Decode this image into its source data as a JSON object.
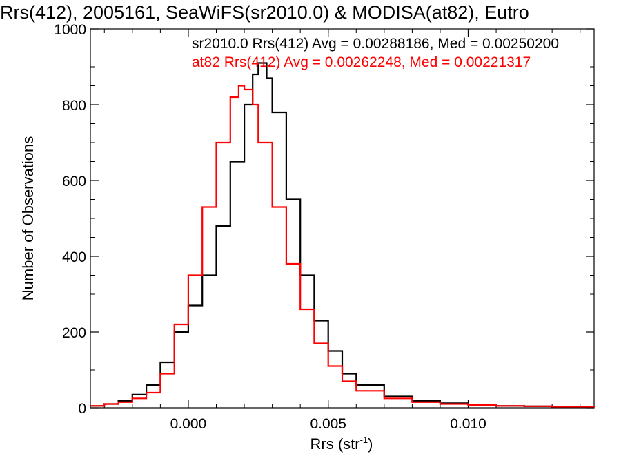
{
  "chart_data": {
    "type": "line",
    "step": true,
    "title": "Rrs(412), 2005161, SeaWiFS(sr2010.0) & MODISA(at82), Eutro",
    "xlabel": "Rrs (str",
    "xlabel_sup": "-1",
    "xlabel_close": ")",
    "ylabel": "Number of Observations",
    "xlim": [
      -0.0035,
      0.0145
    ],
    "ylim": [
      0,
      1000
    ],
    "xticks": [
      0.0,
      0.005,
      0.01
    ],
    "xtick_labels": [
      "0.000",
      "0.005",
      "0.010"
    ],
    "yticks": [
      0,
      200,
      400,
      600,
      800,
      1000
    ],
    "ytick_labels": [
      "0",
      "200",
      "400",
      "600",
      "800",
      "1000"
    ],
    "grid": false,
    "legend_position": "top-right",
    "series": [
      {
        "name": "sr2010.0",
        "legend": "sr2010.0 Rrs(412) Avg = 0.00288186, Med = 0.00250200",
        "color": "#000000",
        "x": [
          -0.0035,
          -0.003,
          -0.0025,
          -0.002,
          -0.0015,
          -0.001,
          -0.0005,
          0.0,
          0.0005,
          0.001,
          0.0015,
          0.002,
          0.0023,
          0.0025,
          0.0028,
          0.003,
          0.0035,
          0.004,
          0.0045,
          0.005,
          0.0055,
          0.006,
          0.007,
          0.008,
          0.009,
          0.01,
          0.011,
          0.012,
          0.013,
          0.0145
        ],
        "y": [
          5,
          10,
          18,
          35,
          60,
          120,
          200,
          270,
          350,
          480,
          650,
          800,
          880,
          910,
          870,
          780,
          550,
          350,
          230,
          150,
          90,
          60,
          30,
          18,
          12,
          8,
          5,
          4,
          3,
          2
        ]
      },
      {
        "name": "at82",
        "legend": "at82 Rrs(412) Avg = 0.00262248, Med = 0.00221317",
        "color": "#ff0000",
        "x": [
          -0.0035,
          -0.003,
          -0.0025,
          -0.002,
          -0.0015,
          -0.001,
          -0.0005,
          0.0,
          0.0005,
          0.001,
          0.0015,
          0.0018,
          0.002,
          0.0023,
          0.0025,
          0.003,
          0.0035,
          0.004,
          0.0045,
          0.005,
          0.0055,
          0.006,
          0.007,
          0.008,
          0.009,
          0.01,
          0.011,
          0.012,
          0.013,
          0.0145
        ],
        "y": [
          5,
          10,
          15,
          25,
          40,
          90,
          220,
          350,
          530,
          700,
          820,
          850,
          840,
          800,
          700,
          530,
          380,
          260,
          170,
          110,
          70,
          45,
          25,
          15,
          10,
          7,
          5,
          4,
          3,
          2
        ]
      }
    ]
  }
}
